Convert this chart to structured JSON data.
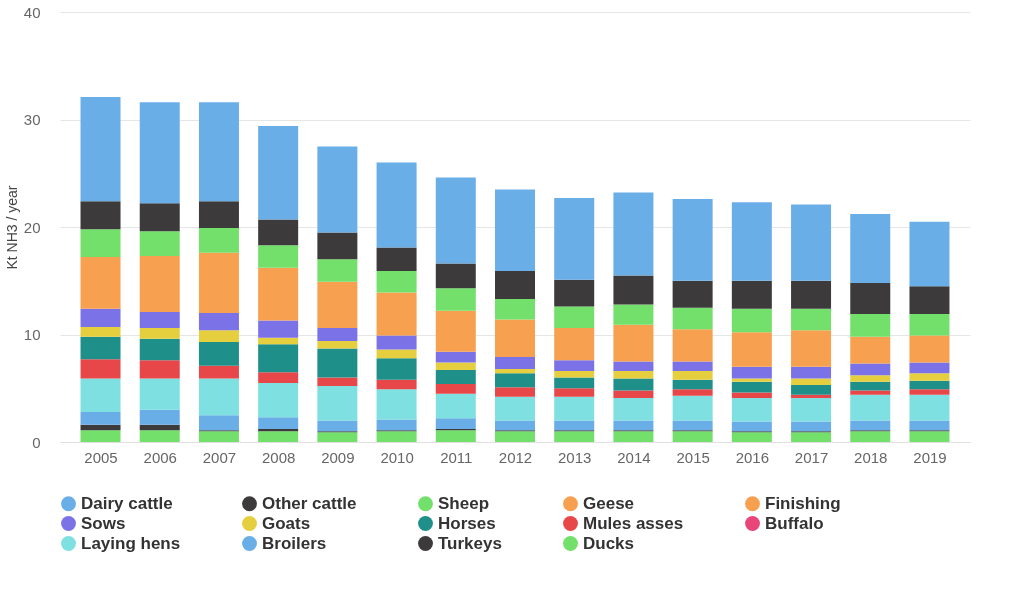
{
  "chart_data": {
    "type": "bar",
    "stacked": true,
    "ylabel": "Kt NH3 / year",
    "categories": [
      "2005",
      "2006",
      "2007",
      "2008",
      "2009",
      "2010",
      "2011",
      "2012",
      "2013",
      "2014",
      "2015",
      "2016",
      "2017",
      "2018",
      "2019"
    ],
    "ylim": [
      0,
      40
    ],
    "yticks": [
      0,
      10,
      20,
      30,
      40
    ],
    "grid": "y",
    "legend": "bottom",
    "series": [
      {
        "name": "Ducks",
        "color": "#72e06a",
        "values": [
          1.1,
          1.1,
          1.0,
          1.0,
          0.9,
          1.0,
          1.1,
          1.0,
          1.0,
          1.0,
          1.0,
          0.9,
          0.9,
          1.0,
          1.0
        ]
      },
      {
        "name": "Turkeys",
        "color": "#3d3a3b",
        "values": [
          0.5,
          0.5,
          0.1,
          0.2,
          0.1,
          0.1,
          0.1,
          0.1,
          0.1,
          0.1,
          0.1,
          0.1,
          0.1,
          0.1,
          0.1
        ]
      },
      {
        "name": "Broilers",
        "color": "#6aaee8",
        "values": [
          1.2,
          1.4,
          1.4,
          1.1,
          1.0,
          1.0,
          1.0,
          0.9,
          0.9,
          0.9,
          0.9,
          0.9,
          0.9,
          0.9,
          0.9
        ]
      },
      {
        "name": "Laying hens",
        "color": "#7ee0e0",
        "values": [
          3.1,
          2.9,
          3.4,
          3.2,
          3.2,
          2.8,
          2.3,
          2.2,
          2.2,
          2.1,
          2.3,
          2.2,
          2.2,
          2.4,
          2.4
        ]
      },
      {
        "name": "Buffalo",
        "color": "#e8457a",
        "values": [
          null,
          null,
          null,
          null,
          null,
          null,
          null,
          null,
          null,
          null,
          null,
          null,
          null,
          null,
          null
        ]
      },
      {
        "name": "Mules asses",
        "color": "#e8474a",
        "values": [
          1.8,
          1.7,
          1.2,
          1.0,
          0.8,
          0.9,
          0.9,
          0.9,
          0.8,
          0.7,
          0.6,
          0.5,
          0.3,
          0.4,
          0.5
        ]
      },
      {
        "name": "Horses",
        "color": "#1f8f8a",
        "values": [
          2.1,
          2.0,
          2.2,
          2.6,
          2.7,
          2.0,
          1.3,
          1.3,
          1.0,
          1.1,
          0.9,
          1.0,
          0.9,
          0.8,
          0.8
        ]
      },
      {
        "name": "Goats",
        "color": "#e6cf3f",
        "values": [
          0.9,
          1.0,
          1.1,
          0.6,
          0.7,
          0.8,
          0.7,
          0.4,
          0.6,
          0.7,
          0.8,
          0.3,
          0.6,
          0.6,
          0.7
        ]
      },
      {
        "name": "Sows",
        "color": "#7b72e8",
        "values": [
          1.7,
          1.5,
          1.6,
          1.6,
          1.2,
          1.3,
          1.0,
          1.1,
          1.0,
          0.9,
          0.9,
          1.1,
          1.1,
          1.1,
          1.0
        ]
      },
      {
        "name": "Finishing",
        "color": "#f7a04f",
        "values": [
          4.8,
          5.2,
          5.6,
          4.9,
          4.3,
          4.0,
          3.8,
          3.5,
          3.0,
          3.4,
          3.0,
          3.2,
          3.4,
          2.5,
          2.5
        ]
      },
      {
        "name": "Geese",
        "color": "#f7a04f",
        "values": [
          null,
          null,
          null,
          null,
          null,
          null,
          null,
          null,
          null,
          null,
          null,
          null,
          null,
          null,
          null
        ]
      },
      {
        "name": "Sheep",
        "color": "#72e06a",
        "values": [
          2.6,
          2.3,
          2.3,
          2.1,
          2.1,
          2.0,
          2.1,
          1.9,
          2.0,
          1.9,
          2.0,
          2.2,
          2.0,
          2.1,
          2.0
        ]
      },
      {
        "name": "Other cattle",
        "color": "#3d3a3b",
        "values": [
          2.6,
          2.6,
          2.5,
          2.4,
          2.5,
          2.2,
          2.3,
          2.6,
          2.5,
          2.7,
          2.5,
          2.6,
          2.6,
          2.9,
          2.6
        ]
      },
      {
        "name": "Dairy cattle",
        "color": "#6aaee8",
        "values": [
          9.7,
          9.4,
          9.2,
          8.7,
          8.0,
          7.9,
          8.0,
          7.6,
          7.6,
          7.7,
          7.6,
          7.3,
          7.1,
          6.4,
          6.0
        ]
      }
    ]
  }
}
